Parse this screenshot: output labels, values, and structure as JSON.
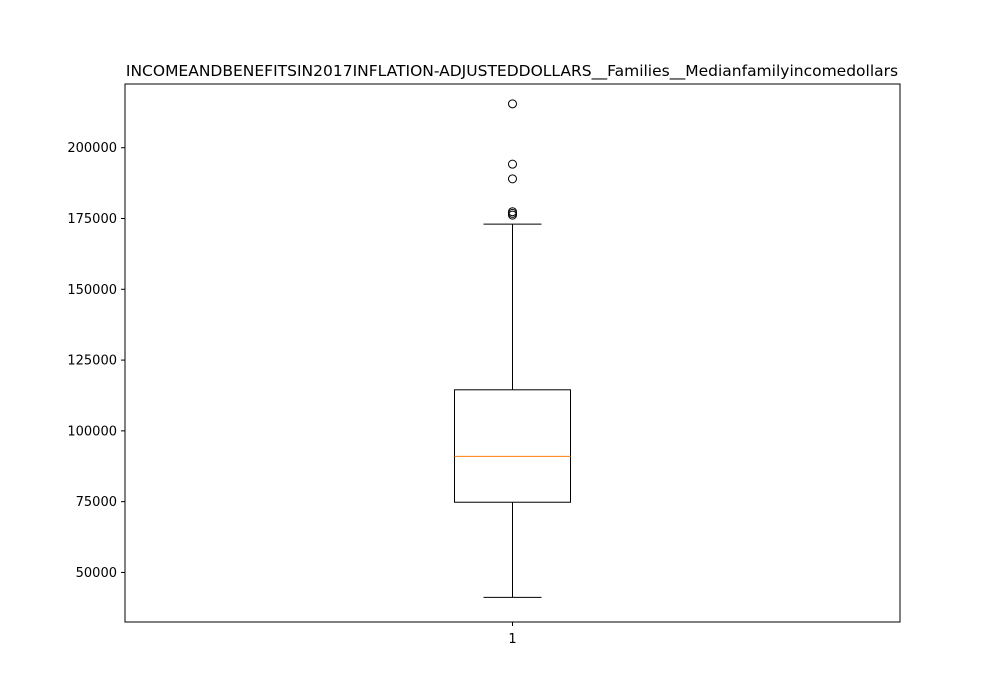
{
  "chart_data": {
    "type": "box",
    "title": "INCOMEANDBENEFITSIN2017INFLATION-ADJUSTEDDOLLARS__Families__Medianfamilyincomedollars",
    "xlabel": "",
    "ylabel": "",
    "categories": [
      "1"
    ],
    "ylim": [
      32500,
      222500
    ],
    "yticks": [
      50000,
      75000,
      100000,
      125000,
      150000,
      175000,
      200000
    ],
    "ytick_labels": [
      "50000",
      "75000",
      "100000",
      "125000",
      "150000",
      "175000",
      "200000"
    ],
    "boxes": [
      {
        "category": "1",
        "whisker_low": 41200,
        "q1": 74800,
        "median": 91000,
        "q3": 114500,
        "whisker_high": 173000,
        "outliers": [
          176200,
          176800,
          177400,
          189000,
          194200,
          215500
        ]
      }
    ],
    "colors": {
      "box": "#000000",
      "median": "#ff7f0e",
      "background": "#ffffff"
    },
    "grid": false,
    "legend": "none"
  }
}
